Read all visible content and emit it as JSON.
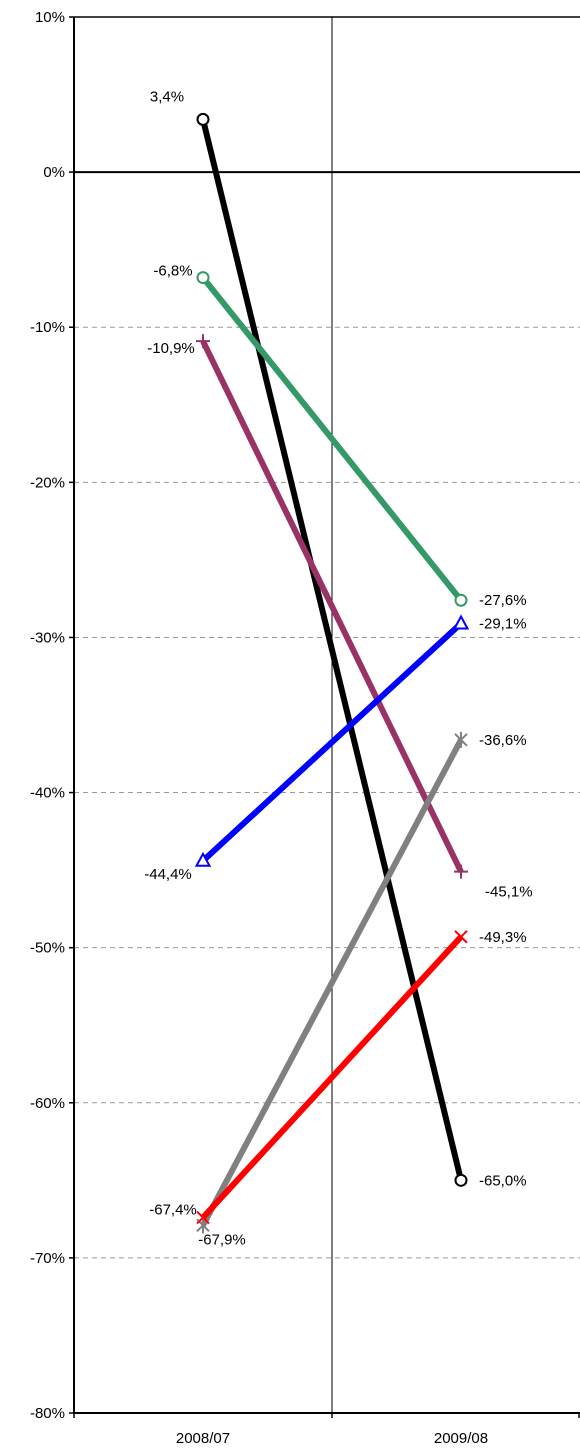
{
  "chart_data": {
    "type": "line",
    "title": "",
    "xlabel": "",
    "ylabel": "",
    "categories": [
      "2008/07",
      "2009/08"
    ],
    "ylim": [
      -80,
      10
    ],
    "yticks": [
      10,
      0,
      -10,
      -20,
      -30,
      -40,
      -50,
      -60,
      -70,
      -80
    ],
    "ytick_labels": [
      "10%",
      "0%",
      "-10%",
      "-20%",
      "-30%",
      "-40%",
      "-50%",
      "-60%",
      "-70%",
      "-80%"
    ],
    "grid": "horizontal dashed",
    "legend": "none",
    "series": [
      {
        "values": [
          3.4,
          -65.0
        ],
        "labels": [
          "3,4%",
          "-65,0%"
        ],
        "color": "#000000",
        "marker": "circle"
      },
      {
        "values": [
          -6.8,
          -27.6
        ],
        "labels": [
          "-6,8%",
          "-27,6%"
        ],
        "color": "#339966",
        "marker": "circle"
      },
      {
        "values": [
          -10.9,
          -45.1
        ],
        "labels": [
          "-10,9%",
          "-45,1%"
        ],
        "color": "#993366",
        "marker": "plus"
      },
      {
        "values": [
          -44.4,
          -29.1
        ],
        "labels": [
          "-44,4%",
          "-29,1%"
        ],
        "color": "#0000ff",
        "marker": "triangle"
      },
      {
        "values": [
          -67.4,
          -49.3
        ],
        "labels": [
          "-67,4%",
          "-49,3%"
        ],
        "color": "#ff0000",
        "marker": "x"
      },
      {
        "values": [
          -67.9,
          -36.6
        ],
        "labels": [
          "-67,9%",
          "-36,6%"
        ],
        "color": "#808080",
        "marker": "star"
      }
    ]
  }
}
